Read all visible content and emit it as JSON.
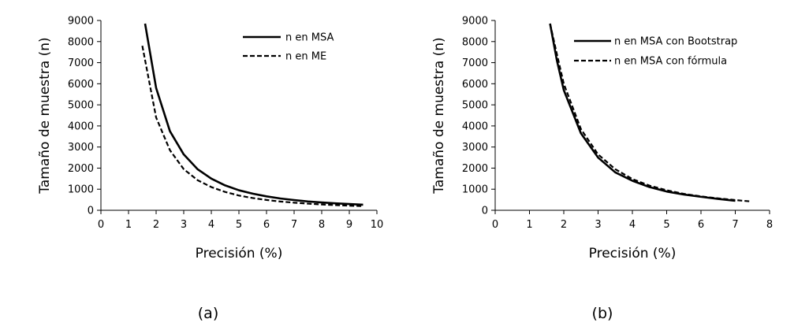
{
  "chart_data": [
    {
      "type": "line",
      "panel_label": "(a)",
      "xlabel": "Precisión (%)",
      "ylabel": "Tamaño de muestra (n)",
      "xlim": [
        0,
        10
      ],
      "ylim": [
        0,
        9000
      ],
      "x_ticks": [
        0,
        1,
        2,
        3,
        4,
        5,
        6,
        7,
        8,
        9,
        10
      ],
      "y_ticks": [
        0,
        1000,
        2000,
        3000,
        4000,
        5000,
        6000,
        7000,
        8000,
        9000
      ],
      "grid": false,
      "legend_position": "top-right",
      "series": [
        {
          "name": "n en MSA",
          "style": "solid",
          "color": "#000000",
          "points": [
            [
              1.6,
              8850
            ],
            [
              2.0,
              5800
            ],
            [
              2.5,
              3750
            ],
            [
              3.0,
              2650
            ],
            [
              3.5,
              1950
            ],
            [
              4.0,
              1500
            ],
            [
              4.5,
              1180
            ],
            [
              5.0,
              950
            ],
            [
              5.5,
              790
            ],
            [
              6.0,
              660
            ],
            [
              6.5,
              560
            ],
            [
              7.0,
              485
            ],
            [
              7.5,
              420
            ],
            [
              8.0,
              370
            ],
            [
              8.5,
              330
            ],
            [
              9.0,
              295
            ],
            [
              9.5,
              265
            ]
          ]
        },
        {
          "name": "n en ME",
          "style": "dashed",
          "color": "#000000",
          "points": [
            [
              1.5,
              7800
            ],
            [
              2.0,
              4400
            ],
            [
              2.5,
              2850
            ],
            [
              3.0,
              1950
            ],
            [
              3.5,
              1430
            ],
            [
              4.0,
              1100
            ],
            [
              4.5,
              870
            ],
            [
              5.0,
              700
            ],
            [
              5.5,
              580
            ],
            [
              6.0,
              490
            ],
            [
              6.5,
              415
            ],
            [
              7.0,
              360
            ],
            [
              7.5,
              315
            ],
            [
              8.0,
              275
            ],
            [
              8.5,
              245
            ],
            [
              9.0,
              220
            ],
            [
              9.5,
              195
            ]
          ]
        }
      ]
    },
    {
      "type": "line",
      "panel_label": "(b)",
      "xlabel": "Precisión (%)",
      "ylabel": "Tamaño de muestra (n)",
      "xlim": [
        0,
        8
      ],
      "ylim": [
        0,
        9000
      ],
      "x_ticks": [
        0,
        1,
        2,
        3,
        4,
        5,
        6,
        7,
        8
      ],
      "y_ticks": [
        0,
        1000,
        2000,
        3000,
        4000,
        5000,
        6000,
        7000,
        8000,
        9000
      ],
      "grid": false,
      "legend_position": "top-right",
      "series": [
        {
          "name": "n en MSA con Bootstrap",
          "style": "solid",
          "color": "#000000",
          "points": [
            [
              1.6,
              8850
            ],
            [
              1.8,
              7100
            ],
            [
              2.0,
              5700
            ],
            [
              2.5,
              3650
            ],
            [
              3.0,
              2500
            ],
            [
              3.5,
              1800
            ],
            [
              4.0,
              1400
            ],
            [
              4.5,
              1100
            ],
            [
              5.0,
              890
            ],
            [
              5.5,
              750
            ],
            [
              6.0,
              640
            ],
            [
              6.5,
              540
            ],
            [
              7.0,
              450
            ]
          ]
        },
        {
          "name": "n en MSA con fórmula",
          "style": "dashed",
          "color": "#000000",
          "points": [
            [
              1.6,
              8850
            ],
            [
              1.8,
              7400
            ],
            [
              2.0,
              6000
            ],
            [
              2.5,
              3850
            ],
            [
              3.0,
              2650
            ],
            [
              3.5,
              1950
            ],
            [
              4.0,
              1480
            ],
            [
              4.5,
              1170
            ],
            [
              5.0,
              950
            ],
            [
              5.5,
              780
            ],
            [
              6.0,
              660
            ],
            [
              6.5,
              565
            ],
            [
              7.0,
              485
            ],
            [
              7.45,
              420
            ]
          ]
        }
      ]
    }
  ]
}
